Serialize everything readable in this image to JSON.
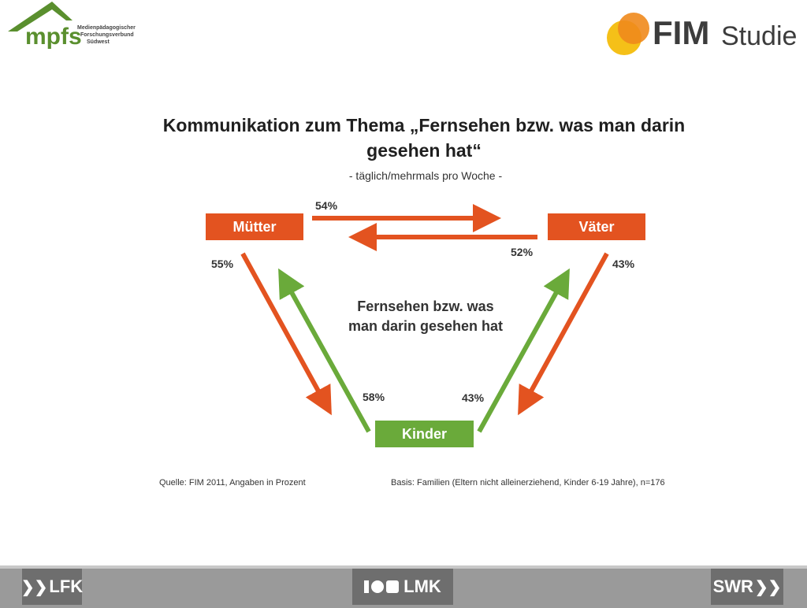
{
  "header": {
    "mpfs_brand": "mpfs",
    "mpfs_subtitle_lines": [
      "Medienpädagogischer",
      "Forschungsverbund",
      "Südwest"
    ],
    "fim_brand": "FIM",
    "fim_studie": "Studie"
  },
  "title_line1": "Kommunikation zum Thema „Fernsehen bzw. was man darin",
  "title_line2": "gesehen hat“",
  "subtitle": "- täglich/mehrmals pro Woche -",
  "nodes": {
    "muetter": "Mütter",
    "vaeter": "Väter",
    "kinder": "Kinder"
  },
  "center_label_line1": "Fernsehen bzw. was",
  "center_label_line2": "man darin gesehen hat",
  "edges": [
    {
      "from": "Mütter",
      "to": "Väter",
      "value": "54%",
      "color": "#e35320"
    },
    {
      "from": "Väter",
      "to": "Mütter",
      "value": "52%",
      "color": "#e35320"
    },
    {
      "from": "Mütter",
      "to": "Kinder",
      "value": "55%",
      "color": "#e35320"
    },
    {
      "from": "Kinder",
      "to": "Mütter",
      "value": "58%",
      "color": "#6aaa3a"
    },
    {
      "from": "Väter",
      "to": "Kinder",
      "value": "43%",
      "color": "#e35320"
    },
    {
      "from": "Kinder",
      "to": "Väter",
      "value": "43%",
      "color": "#6aaa3a"
    }
  ],
  "source": "Quelle: FIM 2011,  Angaben in Prozent",
  "basis": "Basis: Familien (Eltern nicht alleinerziehend, Kinder 6-19 Jahre), n=176",
  "footer": {
    "left_logo": "LFK",
    "center_logo": "LMK",
    "right_logo": "SWR"
  },
  "colors": {
    "orange": "#e35320",
    "green": "#6aaa3a",
    "fim_yellow": "#f5c018",
    "fim_orange": "#f08a1c"
  }
}
